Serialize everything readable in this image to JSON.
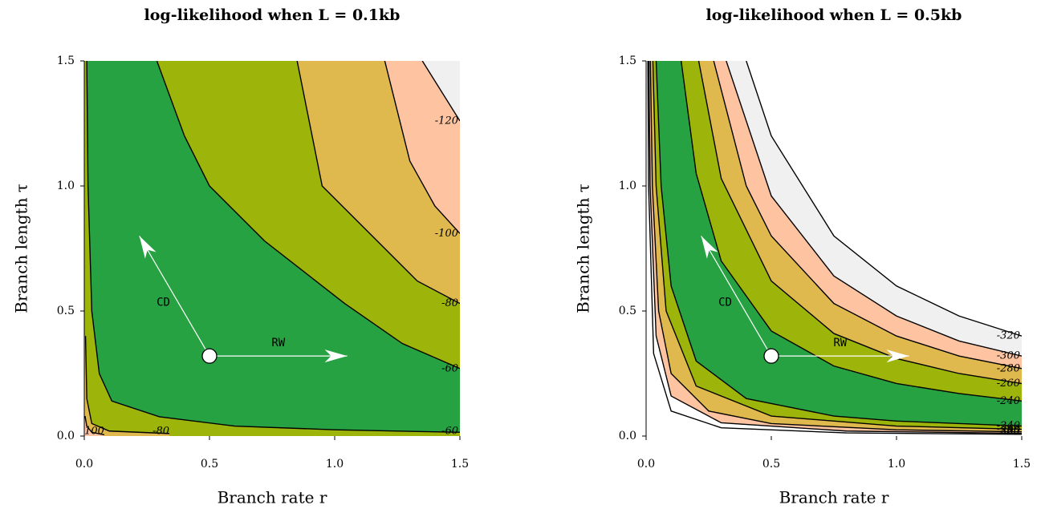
{
  "chart_data": [
    {
      "type": "contour",
      "title": "log-likelihood when L = 0.1kb",
      "x_label": "Branch rate r",
      "y_label": "Branch length τ",
      "xlim": [
        0,
        1.5
      ],
      "ylim": [
        0,
        1.5
      ],
      "xticks": [
        {
          "value": 0,
          "label": "0.0"
        },
        0.5,
        {
          "value": 1,
          "label": "1.0"
        },
        1.5
      ],
      "yticks": [
        {
          "value": 0,
          "label": "0.0"
        },
        0.5,
        {
          "value": 1,
          "label": "1.0"
        },
        1.5
      ],
      "base_color": "#27a243",
      "line_color": "#000000",
      "contours": [
        {
          "level": -60,
          "region": "above",
          "fill": "#9db50a",
          "x": [
            0.29,
            0.4,
            0.5,
            0.72,
            1.04,
            1.27,
            1.5
          ],
          "y": [
            1.5,
            1.2,
            1.0,
            0.78,
            0.53,
            0.37,
            0.27
          ]
        },
        {
          "level": -60,
          "region": "below",
          "fill": "#9db50a",
          "x": [
            0.01,
            0.015,
            0.03,
            0.06,
            0.11,
            0.3,
            0.6,
            1.0,
            1.5
          ],
          "y": [
            1.5,
            1.0,
            0.5,
            0.25,
            0.14,
            0.077,
            0.04,
            0.025,
            0.015
          ]
        },
        {
          "level": -80,
          "region": "above",
          "fill": "#e0b94e",
          "x": [
            0.85,
            0.95,
            1.17,
            1.33,
            1.5
          ],
          "y": [
            1.5,
            1.0,
            0.78,
            0.62,
            0.53
          ]
        },
        {
          "level": -80,
          "region": "below",
          "fill": "#e0b94e",
          "x": [
            0.005,
            0.01,
            0.03,
            0.1,
            0.34
          ],
          "y": [
            0.4,
            0.15,
            0.05,
            0.02,
            0.01
          ]
        },
        {
          "level": -100,
          "region": "above",
          "fill": "#fec4a1",
          "x": [
            1.2,
            1.3,
            1.4,
            1.5
          ],
          "y": [
            1.5,
            1.1,
            0.92,
            0.81
          ]
        },
        {
          "level": -100,
          "region": "below",
          "fill": "#fec4a1",
          "x": [
            0.003,
            0.01,
            0.03,
            0.08
          ],
          "y": [
            0.08,
            0.04,
            0.015,
            0.005
          ]
        },
        {
          "level": -120,
          "region": "above",
          "fill": "#f0f0f0",
          "x": [
            1.35,
            1.5
          ],
          "y": [
            1.5,
            1.26
          ]
        }
      ],
      "point": [
        0.5,
        0.32
      ],
      "moves": [
        {
          "label": "CD",
          "to": [
            0.22,
            0.8
          ]
        },
        {
          "label": "RW",
          "to": [
            1.05,
            0.32
          ]
        }
      ]
    },
    {
      "type": "contour",
      "title": "log-likelihood when L = 0.5kb",
      "x_label": "Branch rate r",
      "y_label": "Branch length τ",
      "xlim": [
        0,
        1.5
      ],
      "ylim": [
        0,
        1.5
      ],
      "xticks": [
        {
          "value": 0,
          "label": "0.0"
        },
        0.5,
        {
          "value": 1,
          "label": "1.0"
        },
        1.5
      ],
      "yticks": [
        {
          "value": 0,
          "label": "0.0"
        },
        0.5,
        {
          "value": 1,
          "label": "1.0"
        },
        1.5
      ],
      "base_color": "#27a243",
      "line_color": "#000000",
      "contours": [
        {
          "level": -240,
          "region": "above",
          "fill": "#9db50a",
          "x": [
            0.14,
            0.2,
            0.3,
            0.5,
            0.75,
            1.0,
            1.25,
            1.5
          ],
          "y": [
            1.5,
            1.05,
            0.7,
            0.42,
            0.28,
            0.21,
            0.17,
            0.14
          ]
        },
        {
          "level": -240,
          "region": "below",
          "fill": "#9db50a",
          "x": [
            0.04,
            0.06,
            0.1,
            0.2,
            0.4,
            0.75,
            1.0,
            1.5
          ],
          "y": [
            1.5,
            1.0,
            0.6,
            0.3,
            0.15,
            0.08,
            0.06,
            0.04
          ]
        },
        {
          "level": -260,
          "region": "above",
          "fill": "#e0b94e",
          "x": [
            0.21,
            0.3,
            0.5,
            0.75,
            1.0,
            1.25,
            1.5
          ],
          "y": [
            1.5,
            1.03,
            0.62,
            0.41,
            0.31,
            0.25,
            0.21
          ]
        },
        {
          "level": -260,
          "region": "below",
          "fill": "#e0b94e",
          "x": [
            0.027,
            0.04,
            0.08,
            0.2,
            0.5,
            1.0,
            1.5
          ],
          "y": [
            1.5,
            1.0,
            0.5,
            0.2,
            0.08,
            0.04,
            0.027
          ]
        },
        {
          "level": -280,
          "region": "above",
          "fill": "#fec4a1",
          "x": [
            0.27,
            0.4,
            0.5,
            0.75,
            1.0,
            1.25,
            1.5
          ],
          "y": [
            1.5,
            1.0,
            0.8,
            0.53,
            0.4,
            0.32,
            0.27
          ]
        },
        {
          "level": -280,
          "region": "below",
          "fill": "#fec4a1",
          "x": [
            0.017,
            0.025,
            0.05,
            0.1,
            0.25,
            0.5,
            1.0,
            1.5
          ],
          "y": [
            1.5,
            1.0,
            0.5,
            0.25,
            0.1,
            0.05,
            0.025,
            0.017
          ]
        },
        {
          "level": -300,
          "region": "above",
          "fill": "#f0f0f0",
          "x": [
            0.32,
            0.5,
            0.75,
            1.0,
            1.25,
            1.5
          ],
          "y": [
            1.5,
            0.96,
            0.64,
            0.48,
            0.38,
            0.32
          ]
        },
        {
          "level": -300,
          "region": "below",
          "fill": "#ffffff",
          "x": [
            0.011,
            0.016,
            0.04,
            0.1,
            0.3,
            0.8,
            1.5
          ],
          "y": [
            1.5,
            1.0,
            0.4,
            0.16,
            0.053,
            0.02,
            0.011
          ]
        },
        {
          "level": -320,
          "region": "above",
          "fill": "#ffffff",
          "x": [
            0.4,
            0.5,
            0.75,
            1.0,
            1.25,
            1.5
          ],
          "y": [
            1.5,
            1.2,
            0.8,
            0.6,
            0.48,
            0.4
          ]
        },
        {
          "level": -320,
          "region": "below",
          "fill": "#ffffff",
          "x": [
            0.007,
            0.01,
            0.03,
            0.1,
            0.3,
            0.8,
            1.5
          ],
          "y": [
            1.5,
            1.0,
            0.33,
            0.1,
            0.033,
            0.0125,
            0.007
          ]
        }
      ],
      "point": [
        0.5,
        0.32
      ],
      "moves": [
        {
          "label": "CD",
          "to": [
            0.22,
            0.8
          ]
        },
        {
          "label": "RW",
          "to": [
            1.05,
            0.32
          ]
        }
      ]
    }
  ]
}
